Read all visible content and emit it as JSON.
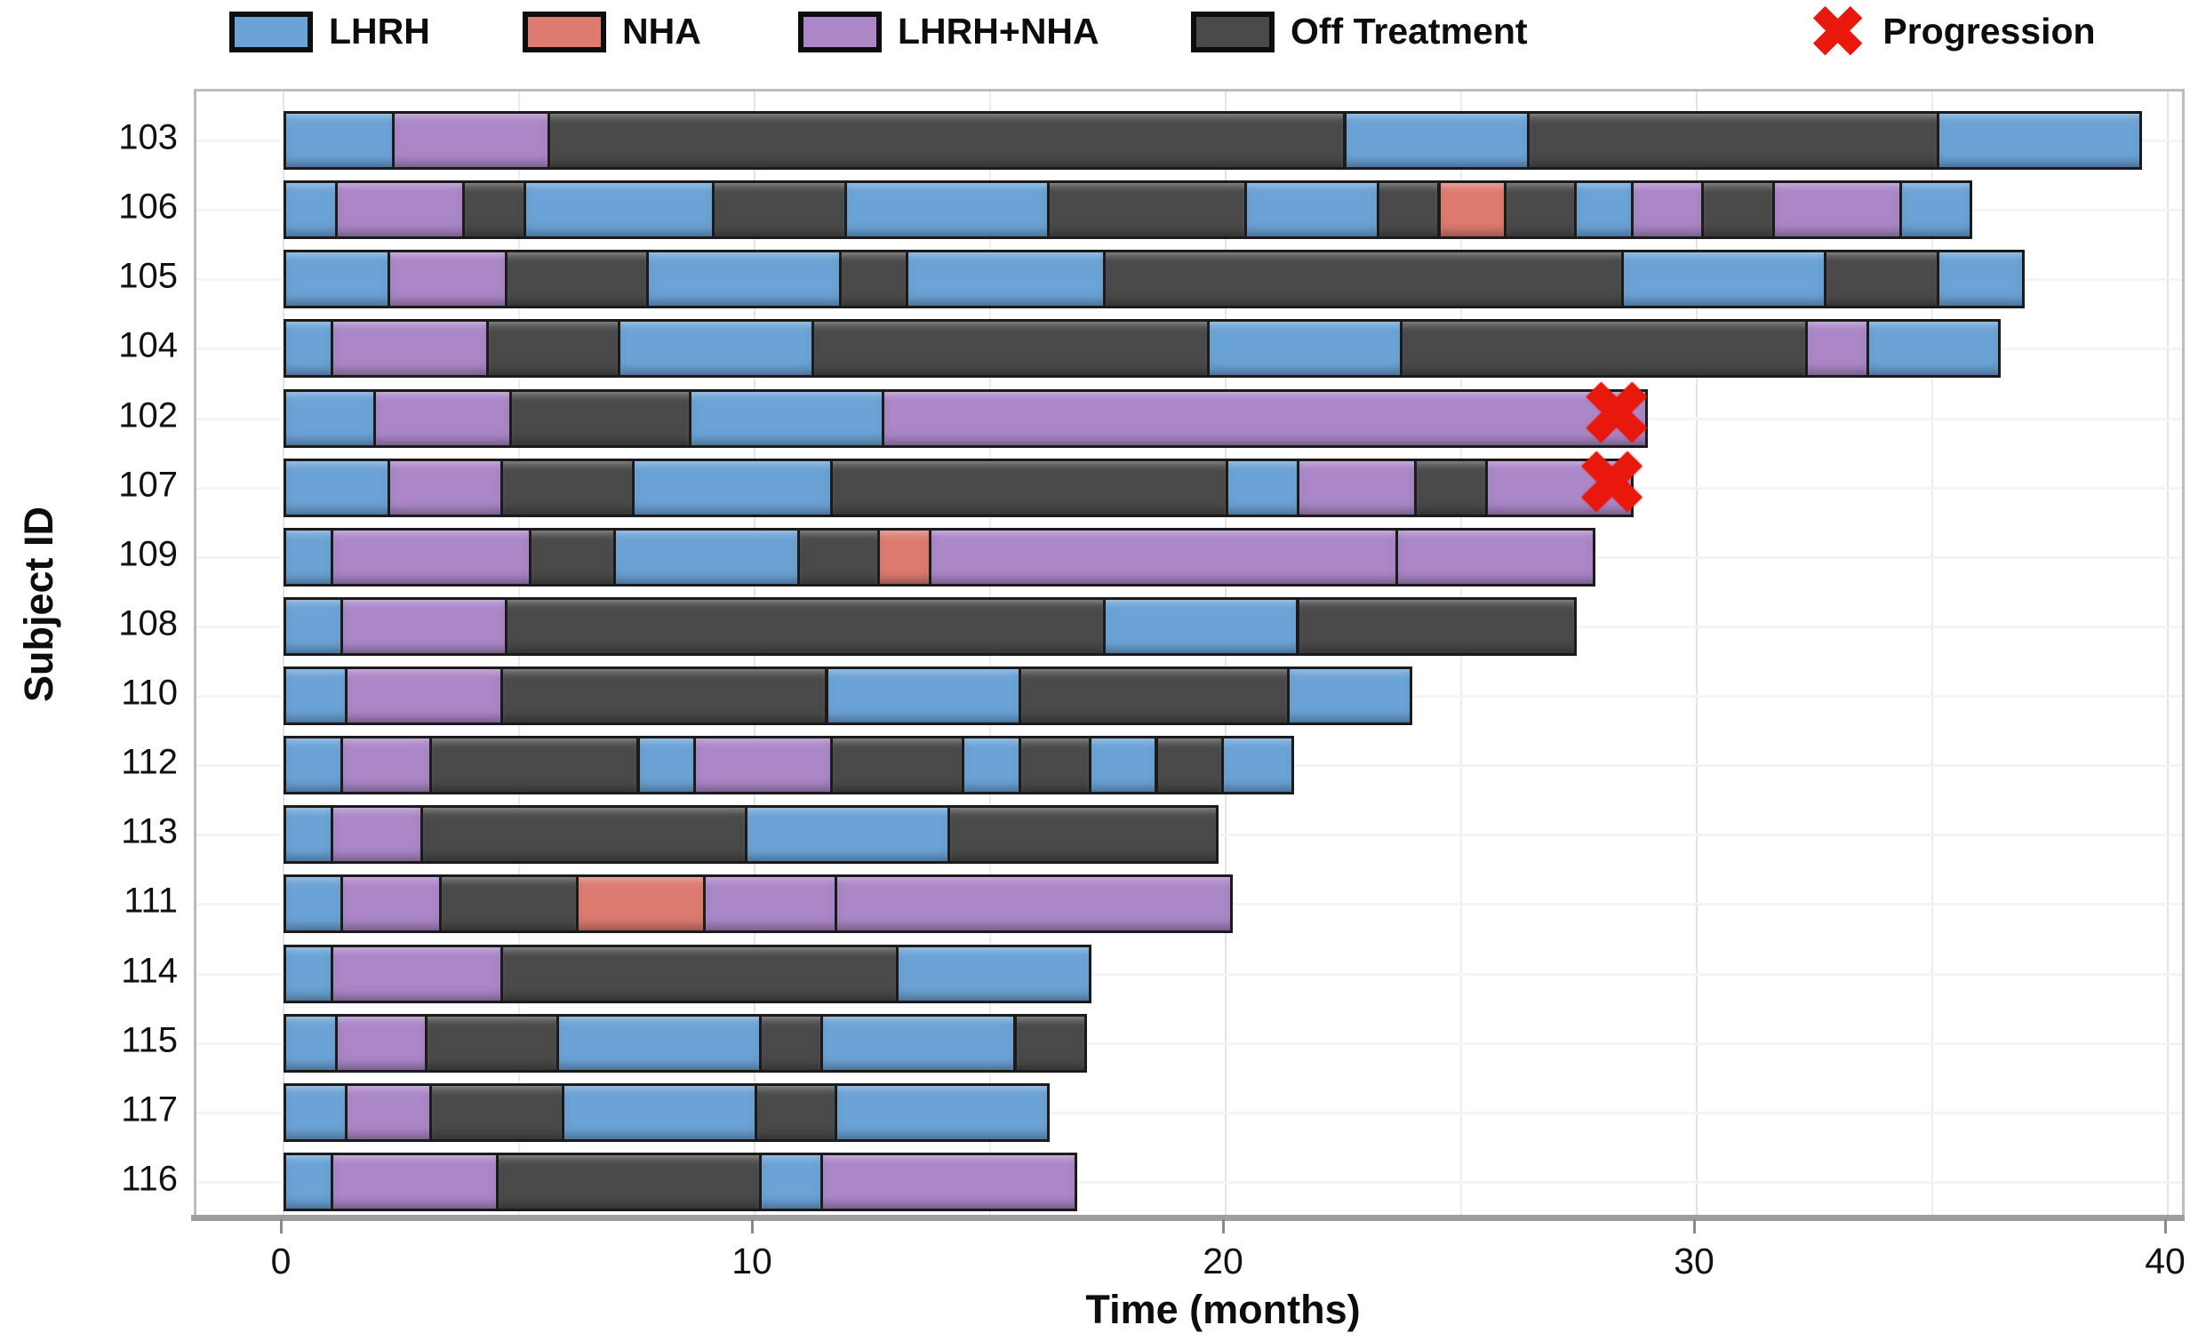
{
  "legend": {
    "items": [
      {
        "label": "LHRH",
        "code": "L"
      },
      {
        "label": "NHA",
        "code": "N"
      },
      {
        "label": "LHRH+NHA",
        "code": "P"
      },
      {
        "label": "Off Treatment",
        "code": "O"
      }
    ],
    "progression_label": "Progression",
    "progression_symbol": "✖"
  },
  "colors": {
    "L": "#6BA3D6",
    "N": "#DD7B70",
    "P": "#AB87C8",
    "O": "#4A4A4A",
    "progression": "#E9180C",
    "segment_border": "#1B1B1B"
  },
  "axes": {
    "x": {
      "label": "Time (months)",
      "ticks": [
        0,
        10,
        20,
        30,
        40
      ],
      "range": [
        0,
        40
      ]
    },
    "y": {
      "label": "Subject ID"
    }
  },
  "chart_data": {
    "type": "bar",
    "subtype": "swimmer-plot",
    "title": "",
    "xlabel": "Time (months)",
    "ylabel": "Subject ID",
    "xlim": [
      0,
      40
    ],
    "grid": true,
    "legend_position": "top",
    "treatment_key": {
      "L": "LHRH",
      "N": "NHA",
      "P": "LHRH+NHA",
      "O": "Off Treatment"
    },
    "categories": [
      "103",
      "106",
      "105",
      "104",
      "102",
      "107",
      "109",
      "108",
      "110",
      "112",
      "113",
      "111",
      "114",
      "115",
      "117",
      "116"
    ],
    "subjects": [
      {
        "id": "103",
        "segments": [
          [
            "L",
            0,
            2.3
          ],
          [
            "P",
            2.3,
            5.6
          ],
          [
            "O",
            5.6,
            22.5
          ],
          [
            "L",
            22.5,
            26.4
          ],
          [
            "O",
            26.4,
            35.1
          ],
          [
            "L",
            35.1,
            39.4
          ]
        ],
        "progression": null
      },
      {
        "id": "106",
        "segments": [
          [
            "L",
            0,
            1.1
          ],
          [
            "P",
            1.1,
            3.8
          ],
          [
            "O",
            3.8,
            5.1
          ],
          [
            "L",
            5.1,
            9.1
          ],
          [
            "O",
            9.1,
            11.9
          ],
          [
            "L",
            11.9,
            16.2
          ],
          [
            "O",
            16.2,
            20.4
          ],
          [
            "L",
            20.4,
            23.2
          ],
          [
            "O",
            23.2,
            24.5
          ],
          [
            "N",
            24.5,
            25.9
          ],
          [
            "O",
            25.9,
            27.4
          ],
          [
            "L",
            27.4,
            28.6
          ],
          [
            "P",
            28.6,
            30.1
          ],
          [
            "O",
            30.1,
            31.6
          ],
          [
            "P",
            31.6,
            34.3
          ],
          [
            "L",
            34.3,
            35.8
          ]
        ],
        "progression": null
      },
      {
        "id": "105",
        "segments": [
          [
            "L",
            0,
            2.2
          ],
          [
            "P",
            2.2,
            4.7
          ],
          [
            "O",
            4.7,
            7.7
          ],
          [
            "L",
            7.7,
            11.8
          ],
          [
            "O",
            11.8,
            13.2
          ],
          [
            "L",
            13.2,
            17.4
          ],
          [
            "O",
            17.4,
            28.4
          ],
          [
            "L",
            28.4,
            32.7
          ],
          [
            "O",
            32.7,
            35.1
          ],
          [
            "L",
            35.1,
            36.9
          ]
        ],
        "progression": null
      },
      {
        "id": "104",
        "segments": [
          [
            "L",
            0,
            1.0
          ],
          [
            "P",
            1.0,
            4.3
          ],
          [
            "O",
            4.3,
            7.1
          ],
          [
            "L",
            7.1,
            11.2
          ],
          [
            "O",
            11.2,
            19.6
          ],
          [
            "L",
            19.6,
            23.7
          ],
          [
            "O",
            23.7,
            32.3
          ],
          [
            "P",
            32.3,
            33.6
          ],
          [
            "L",
            33.6,
            36.4
          ]
        ],
        "progression": null
      },
      {
        "id": "102",
        "segments": [
          [
            "L",
            0,
            1.9
          ],
          [
            "P",
            1.9,
            4.8
          ],
          [
            "O",
            4.8,
            8.6
          ],
          [
            "L",
            8.6,
            12.7
          ],
          [
            "P",
            12.7,
            28.9
          ]
        ],
        "progression": 28.3
      },
      {
        "id": "107",
        "segments": [
          [
            "L",
            0,
            2.2
          ],
          [
            "P",
            2.2,
            4.6
          ],
          [
            "O",
            4.6,
            7.4
          ],
          [
            "L",
            7.4,
            11.6
          ],
          [
            "O",
            11.6,
            20.0
          ],
          [
            "L",
            20.0,
            21.5
          ],
          [
            "P",
            21.5,
            24.0
          ],
          [
            "O",
            24.0,
            25.5
          ],
          [
            "P",
            25.5,
            28.6
          ]
        ],
        "progression": 28.2
      },
      {
        "id": "109",
        "segments": [
          [
            "L",
            0,
            1.0
          ],
          [
            "P",
            1.0,
            5.2
          ],
          [
            "O",
            5.2,
            7.0
          ],
          [
            "L",
            7.0,
            10.9
          ],
          [
            "O",
            10.9,
            12.6
          ],
          [
            "N",
            12.6,
            13.7
          ],
          [
            "P",
            13.7,
            23.6
          ],
          [
            "P",
            23.6,
            27.8
          ]
        ],
        "progression": null
      },
      {
        "id": "108",
        "segments": [
          [
            "L",
            0,
            1.2
          ],
          [
            "P",
            1.2,
            4.7
          ],
          [
            "O",
            4.7,
            17.4
          ],
          [
            "L",
            17.4,
            21.5
          ],
          [
            "O",
            21.5,
            27.4
          ]
        ],
        "progression": null
      },
      {
        "id": "110",
        "segments": [
          [
            "L",
            0,
            1.3
          ],
          [
            "P",
            1.3,
            4.6
          ],
          [
            "O",
            4.6,
            11.5
          ],
          [
            "L",
            11.5,
            15.6
          ],
          [
            "O",
            15.6,
            21.3
          ],
          [
            "L",
            21.3,
            23.9
          ]
        ],
        "progression": null
      },
      {
        "id": "112",
        "segments": [
          [
            "L",
            0,
            1.2
          ],
          [
            "P",
            1.2,
            3.1
          ],
          [
            "O",
            3.1,
            7.5
          ],
          [
            "L",
            7.5,
            8.7
          ],
          [
            "P",
            8.7,
            11.6
          ],
          [
            "O",
            11.6,
            14.4
          ],
          [
            "L",
            14.4,
            15.6
          ],
          [
            "O",
            15.6,
            17.1
          ],
          [
            "L",
            17.1,
            18.5
          ],
          [
            "O",
            18.5,
            19.9
          ],
          [
            "L",
            19.9,
            21.4
          ]
        ],
        "progression": null
      },
      {
        "id": "113",
        "segments": [
          [
            "L",
            0,
            1.0
          ],
          [
            "P",
            1.0,
            2.9
          ],
          [
            "O",
            2.9,
            9.8
          ],
          [
            "L",
            9.8,
            14.1
          ],
          [
            "O",
            14.1,
            19.8
          ]
        ],
        "progression": null
      },
      {
        "id": "111",
        "segments": [
          [
            "L",
            0,
            1.2
          ],
          [
            "P",
            1.2,
            3.3
          ],
          [
            "O",
            3.3,
            6.2
          ],
          [
            "N",
            6.2,
            8.9
          ],
          [
            "P",
            8.9,
            11.7
          ],
          [
            "P",
            11.7,
            20.1
          ]
        ],
        "progression": null
      },
      {
        "id": "114",
        "segments": [
          [
            "L",
            0,
            1.0
          ],
          [
            "P",
            1.0,
            4.6
          ],
          [
            "O",
            4.6,
            13.0
          ],
          [
            "L",
            13.0,
            17.1
          ]
        ],
        "progression": null
      },
      {
        "id": "115",
        "segments": [
          [
            "L",
            0,
            1.1
          ],
          [
            "P",
            1.1,
            3.0
          ],
          [
            "O",
            3.0,
            5.8
          ],
          [
            "L",
            5.8,
            10.1
          ],
          [
            "O",
            10.1,
            11.4
          ],
          [
            "L",
            11.4,
            15.5
          ],
          [
            "O",
            15.5,
            17.0
          ]
        ],
        "progression": null
      },
      {
        "id": "117",
        "segments": [
          [
            "L",
            0,
            1.3
          ],
          [
            "P",
            1.3,
            3.1
          ],
          [
            "O",
            3.1,
            5.9
          ],
          [
            "L",
            5.9,
            10.0
          ],
          [
            "O",
            10.0,
            11.7
          ],
          [
            "L",
            11.7,
            16.2
          ]
        ],
        "progression": null
      },
      {
        "id": "116",
        "segments": [
          [
            "L",
            0,
            1.0
          ],
          [
            "P",
            1.0,
            4.5
          ],
          [
            "O",
            4.5,
            10.1
          ],
          [
            "L",
            10.1,
            11.4
          ],
          [
            "P",
            11.4,
            16.8
          ]
        ],
        "progression": null
      }
    ]
  }
}
